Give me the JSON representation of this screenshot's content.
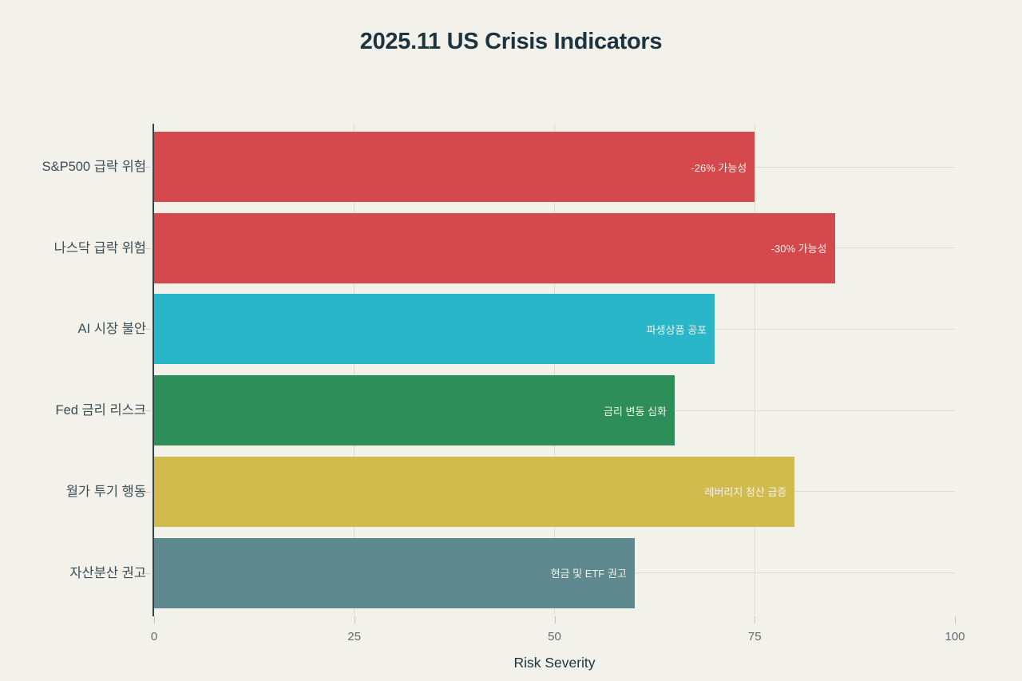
{
  "page": {
    "background_color": "#f2f1ea",
    "text_dark_color": "#1c3340",
    "grid_color": "#dcdbd3",
    "axis_line_color": "#32424a",
    "tick_label_color": "#5f6a6d",
    "bar_label_text_color": "#f2f1ea"
  },
  "chart_data": {
    "type": "bar",
    "orientation": "horizontal",
    "title": "2025.11 US Crisis Indicators",
    "xlabel": "Risk Severity",
    "ylabel": "",
    "xlim": [
      0,
      100
    ],
    "xticks": [
      "0",
      "25",
      "50",
      "75",
      "100"
    ],
    "xtick_values": [
      0,
      25,
      50,
      75,
      100
    ],
    "grid": true,
    "legend": "none",
    "categories": [
      "S&P500 급락 위험",
      "나스닥 급락 위험",
      "AI 시장 불안",
      "Fed 금리 리스크",
      "월가 투기 행동",
      "자산분산 권고"
    ],
    "values": [
      75,
      85,
      70,
      65,
      80,
      60
    ],
    "bar_labels": [
      "-26% 가능성",
      "-30% 가능성",
      "파생상품 공포",
      "금리 변동 심화",
      "레버리지 청산 급증",
      "현금 및 ETF 권고"
    ],
    "bar_colors": [
      "#d5494c",
      "#d5494c",
      "#29b6c9",
      "#2d8e5a",
      "#d2bb4d",
      "#5e898e"
    ]
  }
}
